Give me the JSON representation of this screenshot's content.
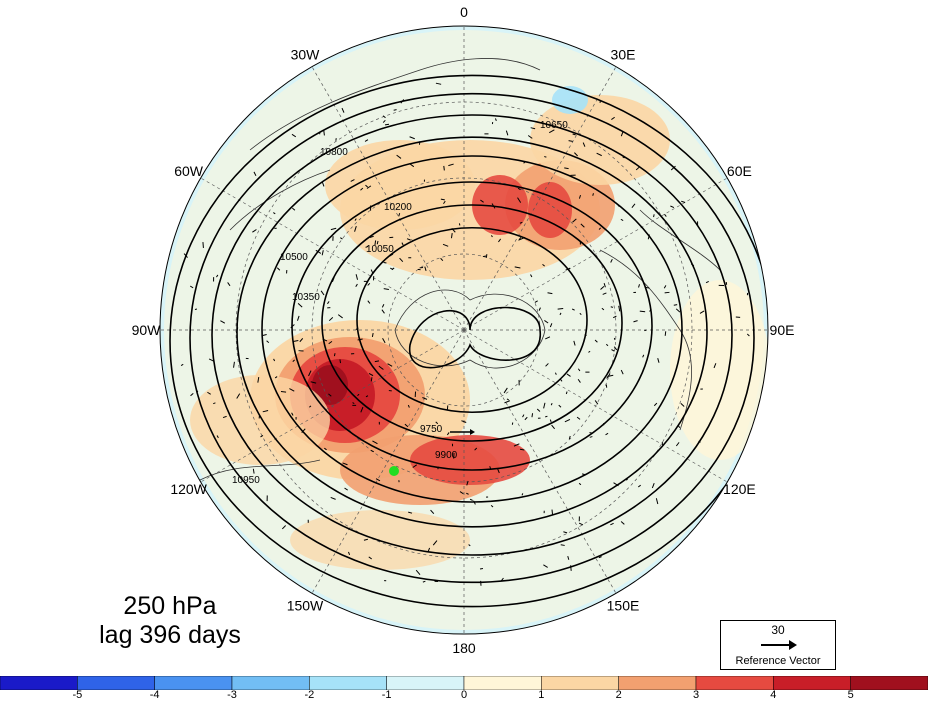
{
  "panel": {
    "level_label": "250 hPa",
    "lag_label": "lag 396 days"
  },
  "map": {
    "projection": "polar stereographic, north pole centred",
    "longitude_labels": [
      {
        "text": "0",
        "lon": 0
      },
      {
        "text": "30W",
        "lon": -30
      },
      {
        "text": "60W",
        "lon": -60
      },
      {
        "text": "90W",
        "lon": -90
      },
      {
        "text": "120W",
        "lon": -120
      },
      {
        "text": "150W",
        "lon": -150
      },
      {
        "text": "180",
        "lon": 180
      },
      {
        "text": "150E",
        "lon": 150
      },
      {
        "text": "120E",
        "lon": 120
      },
      {
        "text": "90E",
        "lon": 90
      },
      {
        "text": "60E",
        "lon": 60
      },
      {
        "text": "30E",
        "lon": 30
      }
    ],
    "contour_labels": [
      "9750",
      "9900",
      "10050",
      "10200",
      "10350",
      "10500",
      "10650",
      "10800",
      "10950"
    ],
    "marker_color": "#22dd22"
  },
  "reference_vector": {
    "value": "30",
    "label": "Reference Vector"
  },
  "colorbar": {
    "ticks": [
      "-5",
      "-4",
      "-3",
      "-2",
      "-1",
      "0",
      "1",
      "2",
      "3",
      "4",
      "5"
    ],
    "colors": [
      "#1a1ac8",
      "#2f63e8",
      "#4a92f0",
      "#72bef4",
      "#a6e2f8",
      "#d8f4f8",
      "#fff6d8",
      "#fbd6a4",
      "#f2a070",
      "#e64a40",
      "#c81e28",
      "#a0101e"
    ]
  }
}
